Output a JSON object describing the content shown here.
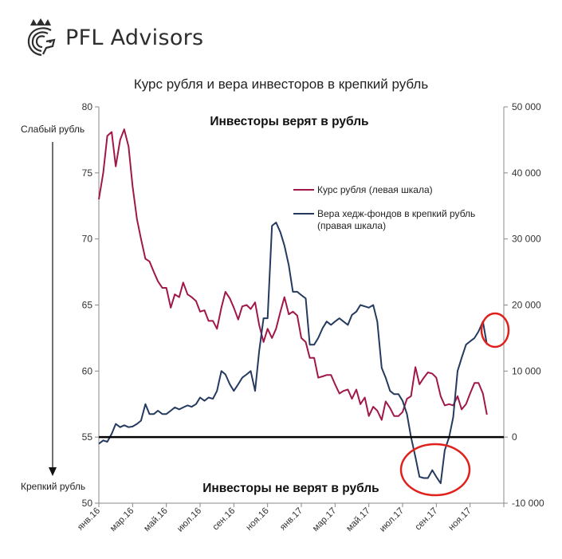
{
  "brand": {
    "name": "PFL Advisors"
  },
  "chart_data": {
    "type": "line",
    "title": "Курс рубля и вера инвесторов в крепкий рубль",
    "x_ticks": [
      "янв.16",
      "мар.16",
      "май.16",
      "июл.16",
      "сен.16",
      "ноя.16",
      "янв.17",
      "мар.17",
      "май.17",
      "июл.17",
      "сен.17",
      "ноя.17"
    ],
    "left_axis": {
      "ylim": [
        50,
        80
      ],
      "ticks": [
        "50",
        "55",
        "60",
        "65",
        "70",
        "75",
        "80"
      ],
      "top_label": "Слабый рубль",
      "bottom_label": "Крепкий рубль"
    },
    "right_axis": {
      "ylim": [
        -10000,
        50000
      ],
      "ticks": [
        "-10 000",
        "0",
        "10 000",
        "20 000",
        "30 000",
        "40 000",
        "50 000"
      ]
    },
    "annotations": {
      "top": "Инвесторы верят в рубль",
      "bottom": "Инвесторы не верят в рубль"
    },
    "reference_line": {
      "axis": "right",
      "value": 0
    },
    "series": [
      {
        "name": "Курс рубля (левая шкала)",
        "axis": "left",
        "color": "#a0174a",
        "x": [
          0,
          0.13,
          0.25,
          0.38,
          0.5,
          0.63,
          0.75,
          0.88,
          1,
          1.13,
          1.25,
          1.38,
          1.5,
          1.63,
          1.75,
          1.88,
          2,
          2.13,
          2.25,
          2.38,
          2.5,
          2.63,
          2.75,
          2.88,
          3,
          3.13,
          3.25,
          3.38,
          3.5,
          3.63,
          3.75,
          3.88,
          4,
          4.13,
          4.25,
          4.38,
          4.5,
          4.63,
          4.75,
          4.88,
          5,
          5.13,
          5.25,
          5.38,
          5.5,
          5.63,
          5.75,
          5.88,
          6,
          6.13,
          6.25,
          6.38,
          6.5,
          6.63,
          6.75,
          6.88,
          7,
          7.13,
          7.25,
          7.38,
          7.5,
          7.63,
          7.75,
          7.88,
          8,
          8.13,
          8.25,
          8.38,
          8.5,
          8.63,
          8.75,
          8.88,
          9,
          9.13,
          9.25,
          9.38,
          9.5,
          9.63,
          9.75,
          9.88,
          10,
          10.13,
          10.25,
          10.38,
          10.5,
          10.63,
          10.75,
          10.88,
          11,
          11.13,
          11.25,
          11.38,
          11.5
        ],
        "values": [
          73,
          75,
          77.8,
          78.1,
          75.5,
          77.5,
          78.3,
          77,
          74,
          71.5,
          70,
          68.5,
          68.3,
          67.5,
          66.8,
          66.3,
          66.3,
          64.8,
          65.8,
          65.6,
          66.7,
          65.8,
          65.6,
          65.3,
          64.5,
          64.6,
          63.8,
          63.8,
          63.2,
          64.8,
          66,
          65.5,
          64.8,
          63.9,
          64.9,
          65,
          64.7,
          65.2,
          63.5,
          62.2,
          63.2,
          62.5,
          63.2,
          64.5,
          65.6,
          64.3,
          64.5,
          64.2,
          62.5,
          62.2,
          61,
          61,
          59.5,
          59.6,
          59.7,
          59.7,
          59,
          58.3,
          58.5,
          58.6,
          57.9,
          58.6,
          57.5,
          58,
          56.6,
          57.3,
          57,
          56.3,
          57.7,
          57.2,
          56.6,
          56.6,
          56.9,
          57.9,
          58.1,
          60.3,
          59,
          59.5,
          59.9,
          59.8,
          59.5,
          58.1,
          57.4,
          57.5,
          57.4,
          58.1,
          57.1,
          57.5,
          58.3,
          59.1,
          59.1,
          58.3,
          56.7
        ]
      },
      {
        "name": "Вера хедж-фондов в крепкий рубль (правая шкала)",
        "axis": "right",
        "color": "#243a5e",
        "x": [
          0,
          0.13,
          0.25,
          0.38,
          0.5,
          0.63,
          0.75,
          0.88,
          1,
          1.13,
          1.25,
          1.38,
          1.5,
          1.63,
          1.75,
          1.88,
          2,
          2.13,
          2.25,
          2.38,
          2.5,
          2.63,
          2.75,
          2.88,
          3,
          3.13,
          3.25,
          3.38,
          3.5,
          3.63,
          3.75,
          3.88,
          4,
          4.13,
          4.25,
          4.38,
          4.5,
          4.63,
          4.75,
          4.88,
          5,
          5.13,
          5.25,
          5.38,
          5.5,
          5.63,
          5.75,
          5.88,
          6,
          6.13,
          6.25,
          6.38,
          6.5,
          6.63,
          6.75,
          6.88,
          7,
          7.13,
          7.25,
          7.38,
          7.5,
          7.63,
          7.75,
          7.88,
          8,
          8.13,
          8.25,
          8.38,
          8.5,
          8.63,
          8.75,
          8.88,
          9,
          9.13,
          9.25,
          9.38,
          9.5,
          9.63,
          9.75,
          9.88,
          10,
          10.13,
          10.25,
          10.38,
          10.5,
          10.63,
          10.75,
          10.88,
          11,
          11.13,
          11.25,
          11.38,
          11.5
        ],
        "values": [
          -1000,
          -500,
          -700,
          500,
          2000,
          1500,
          1800,
          1500,
          1600,
          2000,
          2500,
          5000,
          3500,
          3500,
          4000,
          3500,
          3500,
          4000,
          4500,
          4200,
          4500,
          4800,
          4600,
          5000,
          6000,
          5500,
          6000,
          5800,
          7000,
          10000,
          9500,
          8000,
          7000,
          8000,
          9000,
          9500,
          10000,
          7000,
          13000,
          18000,
          18000,
          32000,
          32500,
          31000,
          29000,
          26000,
          22000,
          22000,
          21500,
          21000,
          14000,
          14000,
          15000,
          16500,
          17500,
          17000,
          17500,
          18000,
          17500,
          17000,
          18500,
          19000,
          20000,
          19800,
          19600,
          20000,
          17500,
          10500,
          9000,
          7000,
          6500,
          6500,
          5500,
          3500,
          0,
          -3000,
          -6000,
          -6200,
          -6200,
          -5000,
          -6000,
          -7000,
          -2000,
          0,
          3000,
          10000,
          12000,
          14000,
          14500,
          15000,
          16000,
          17500,
          14000
        ]
      }
    ],
    "highlights": [
      "ellipse around the dip near сен.17",
      "ellipse around the peak near ноя.17"
    ]
  }
}
